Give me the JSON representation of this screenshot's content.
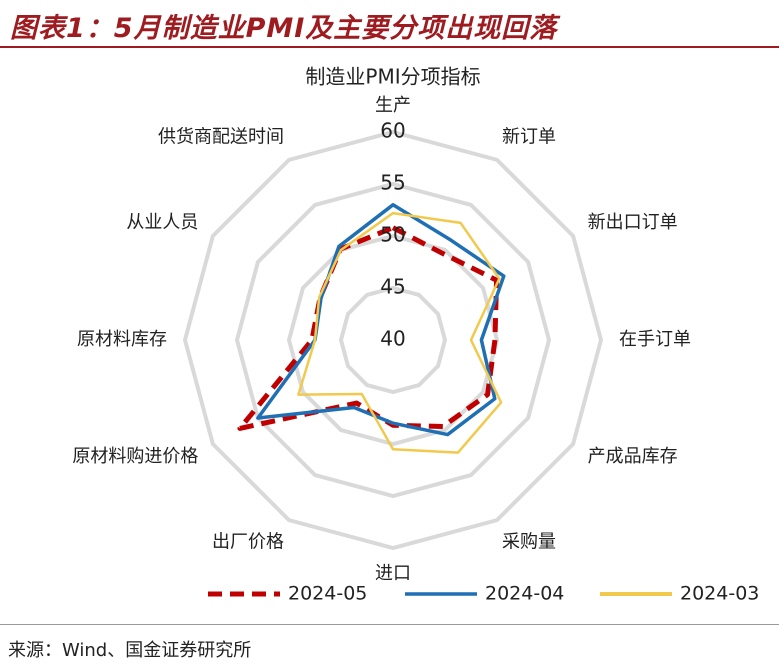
{
  "header": {
    "title": "图表1：5月制造业PMI及主要分项出现回落"
  },
  "chart_data": {
    "type": "radar",
    "title": "制造业PMI分项指标",
    "categories": [
      "生产",
      "新订单",
      "新出口订单",
      "在手订单",
      "产成品库存",
      "采购量",
      "进口",
      "出厂价格",
      "原材料购进价格",
      "原材料库存",
      "从业人员",
      "供货商配送时间"
    ],
    "series": [
      {
        "name": "2024-05",
        "color": "#c00000",
        "dash": true,
        "values": [
          50.8,
          49.6,
          51.5,
          49.8,
          50.5,
          49.6,
          48.2,
          47.0,
          57.0,
          47.8,
          48.1,
          50.1
        ]
      },
      {
        "name": "2024-04",
        "color": "#1f6fb4",
        "dash": false,
        "values": [
          53.0,
          51.1,
          52.3,
          48.5,
          51.3,
          50.5,
          48.0,
          47.5,
          55.0,
          47.5,
          48.0,
          50.4
        ]
      },
      {
        "name": "2024-03",
        "color": "#f2c94c",
        "dash": false,
        "values": [
          52.2,
          53.0,
          51.8,
          47.5,
          52.0,
          52.5,
          50.5,
          46.0,
          50.5,
          47.5,
          48.2,
          50.0
        ]
      }
    ],
    "rlim": [
      40,
      60
    ],
    "rticks": [
      40,
      45,
      50,
      55,
      60
    ],
    "grid": true
  },
  "footer": {
    "source": "来源：Wind、国金证券研究所"
  }
}
